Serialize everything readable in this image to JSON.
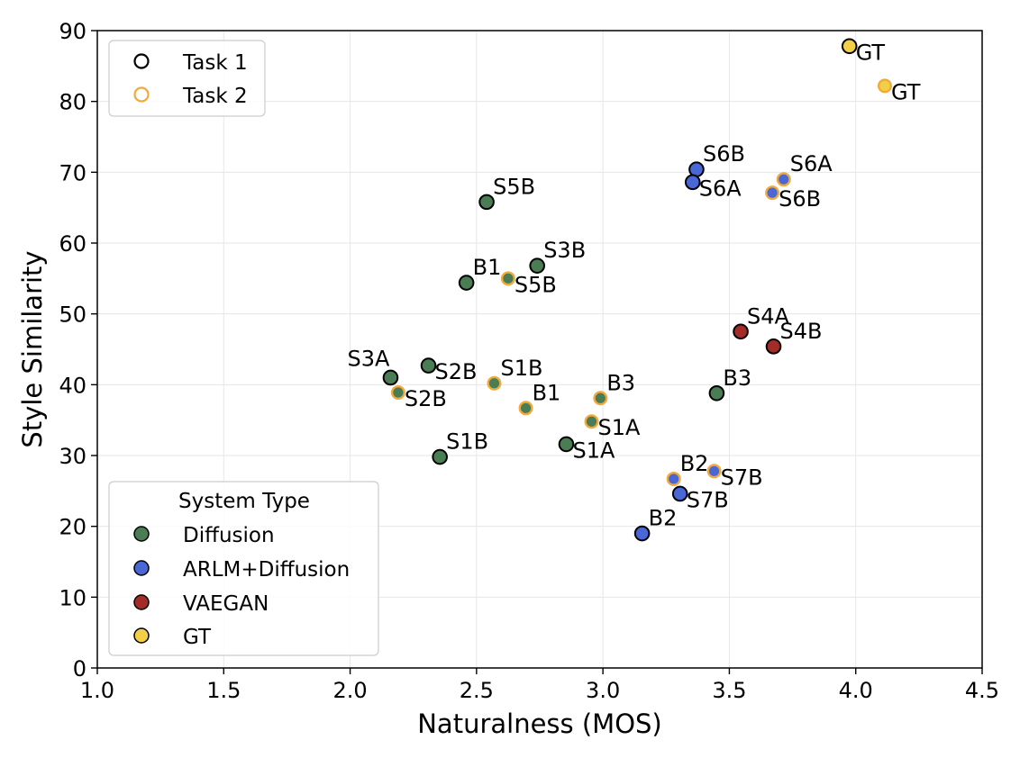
{
  "chart_data": {
    "type": "scatter",
    "title": "",
    "xlabel": "Naturalness (MOS)",
    "ylabel": "Style Similarity",
    "xlim": [
      1.0,
      4.5
    ],
    "ylim": [
      0,
      90
    ],
    "xticks": [
      "1.0",
      "1.5",
      "2.0",
      "2.5",
      "3.0",
      "3.5",
      "4.0",
      "4.5"
    ],
    "xtick_values": [
      1.0,
      1.5,
      2.0,
      2.5,
      3.0,
      3.5,
      4.0,
      4.5
    ],
    "yticks": [
      "0",
      "10",
      "20",
      "30",
      "40",
      "50",
      "60",
      "70",
      "80",
      "90"
    ],
    "ytick_values": [
      0,
      10,
      20,
      30,
      40,
      50,
      60,
      70,
      80,
      90
    ],
    "grid": true,
    "task_legend": {
      "placement": "top-left",
      "entries": [
        {
          "label": "Task 1",
          "edge_color": "#000000"
        },
        {
          "label": "Task 2",
          "edge_color": "#f2a93b"
        }
      ]
    },
    "type_legend": {
      "placement": "bottom-left",
      "title": "System Type",
      "entries": [
        {
          "label": "Diffusion",
          "color": "#4a7d54"
        },
        {
          "label": "ARLM+Diffusion",
          "color": "#4a67d6"
        },
        {
          "label": "VAEGAN",
          "color": "#a32c28"
        },
        {
          "label": "GT",
          "color": "#f3cf47"
        }
      ]
    },
    "system_colors": {
      "Diffusion": "#4a7d54",
      "ARLM+Diffusion": "#4a67d6",
      "VAEGAN": "#a32c28",
      "GT": "#f3cf47"
    },
    "task_edge_colors": {
      "Task 1": "#000000",
      "Task 2": "#f2a93b"
    },
    "points": [
      {
        "label": "S5B",
        "x": 2.54,
        "y": 65.8,
        "system": "Diffusion",
        "task": "Task 1",
        "label_pos": "ur"
      },
      {
        "label": "S3B",
        "x": 2.74,
        "y": 56.8,
        "system": "Diffusion",
        "task": "Task 1",
        "label_pos": "ur"
      },
      {
        "label": "B1",
        "x": 2.46,
        "y": 54.4,
        "system": "Diffusion",
        "task": "Task 1",
        "label_pos": "ur"
      },
      {
        "label": "S3A",
        "x": 2.16,
        "y": 41.0,
        "system": "Diffusion",
        "task": "Task 1",
        "label_pos": "ul"
      },
      {
        "label": "S2B",
        "x": 2.31,
        "y": 42.7,
        "system": "Diffusion",
        "task": "Task 1",
        "label_pos": "lr"
      },
      {
        "label": "S1B",
        "x": 2.355,
        "y": 29.8,
        "system": "Diffusion",
        "task": "Task 1",
        "label_pos": "ur"
      },
      {
        "label": "S1A",
        "x": 2.855,
        "y": 31.6,
        "system": "Diffusion",
        "task": "Task 1",
        "label_pos": "lr"
      },
      {
        "label": "B3",
        "x": 3.45,
        "y": 38.8,
        "system": "Diffusion",
        "task": "Task 1",
        "label_pos": "ur"
      },
      {
        "label": "S6B",
        "x": 3.37,
        "y": 70.4,
        "system": "ARLM+Diffusion",
        "task": "Task 1",
        "label_pos": "ur"
      },
      {
        "label": "S6A",
        "x": 3.355,
        "y": 68.6,
        "system": "ARLM+Diffusion",
        "task": "Task 1",
        "label_pos": "lr"
      },
      {
        "label": "S7B",
        "x": 3.305,
        "y": 24.6,
        "system": "ARLM+Diffusion",
        "task": "Task 1",
        "label_pos": "lr"
      },
      {
        "label": "B2",
        "x": 3.155,
        "y": 19.0,
        "system": "ARLM+Diffusion",
        "task": "Task 1",
        "label_pos": "ur"
      },
      {
        "label": "S4A",
        "x": 3.545,
        "y": 47.5,
        "system": "VAEGAN",
        "task": "Task 1",
        "label_pos": "ur"
      },
      {
        "label": "S4B",
        "x": 3.675,
        "y": 45.4,
        "system": "VAEGAN",
        "task": "Task 1",
        "label_pos": "ur"
      },
      {
        "label": "GT",
        "x": 3.975,
        "y": 87.8,
        "system": "GT",
        "task": "Task 1",
        "label_pos": "lr"
      },
      {
        "label": "S5B",
        "x": 2.625,
        "y": 55.0,
        "system": "Diffusion",
        "task": "Task 2",
        "label_pos": "lr"
      },
      {
        "label": "S2B",
        "x": 2.19,
        "y": 38.9,
        "system": "Diffusion",
        "task": "Task 2",
        "label_pos": "lr"
      },
      {
        "label": "S1B",
        "x": 2.57,
        "y": 40.2,
        "system": "Diffusion",
        "task": "Task 2",
        "label_pos": "ur"
      },
      {
        "label": "B1",
        "x": 2.695,
        "y": 36.7,
        "system": "Diffusion",
        "task": "Task 2",
        "label_pos": "ur"
      },
      {
        "label": "B3",
        "x": 2.99,
        "y": 38.1,
        "system": "Diffusion",
        "task": "Task 2",
        "label_pos": "ur"
      },
      {
        "label": "S1A",
        "x": 2.955,
        "y": 34.8,
        "system": "Diffusion",
        "task": "Task 2",
        "label_pos": "lr"
      },
      {
        "label": "S6A",
        "x": 3.715,
        "y": 69.0,
        "system": "ARLM+Diffusion",
        "task": "Task 2",
        "label_pos": "ur"
      },
      {
        "label": "S6B",
        "x": 3.67,
        "y": 67.1,
        "system": "ARLM+Diffusion",
        "task": "Task 2",
        "label_pos": "lr"
      },
      {
        "label": "B2",
        "x": 3.28,
        "y": 26.7,
        "system": "ARLM+Diffusion",
        "task": "Task 2",
        "label_pos": "ur"
      },
      {
        "label": "S7B",
        "x": 3.44,
        "y": 27.8,
        "system": "ARLM+Diffusion",
        "task": "Task 2",
        "label_pos": "lr"
      },
      {
        "label": "GT",
        "x": 4.115,
        "y": 82.2,
        "system": "GT",
        "task": "Task 2",
        "label_pos": "lr"
      }
    ]
  }
}
